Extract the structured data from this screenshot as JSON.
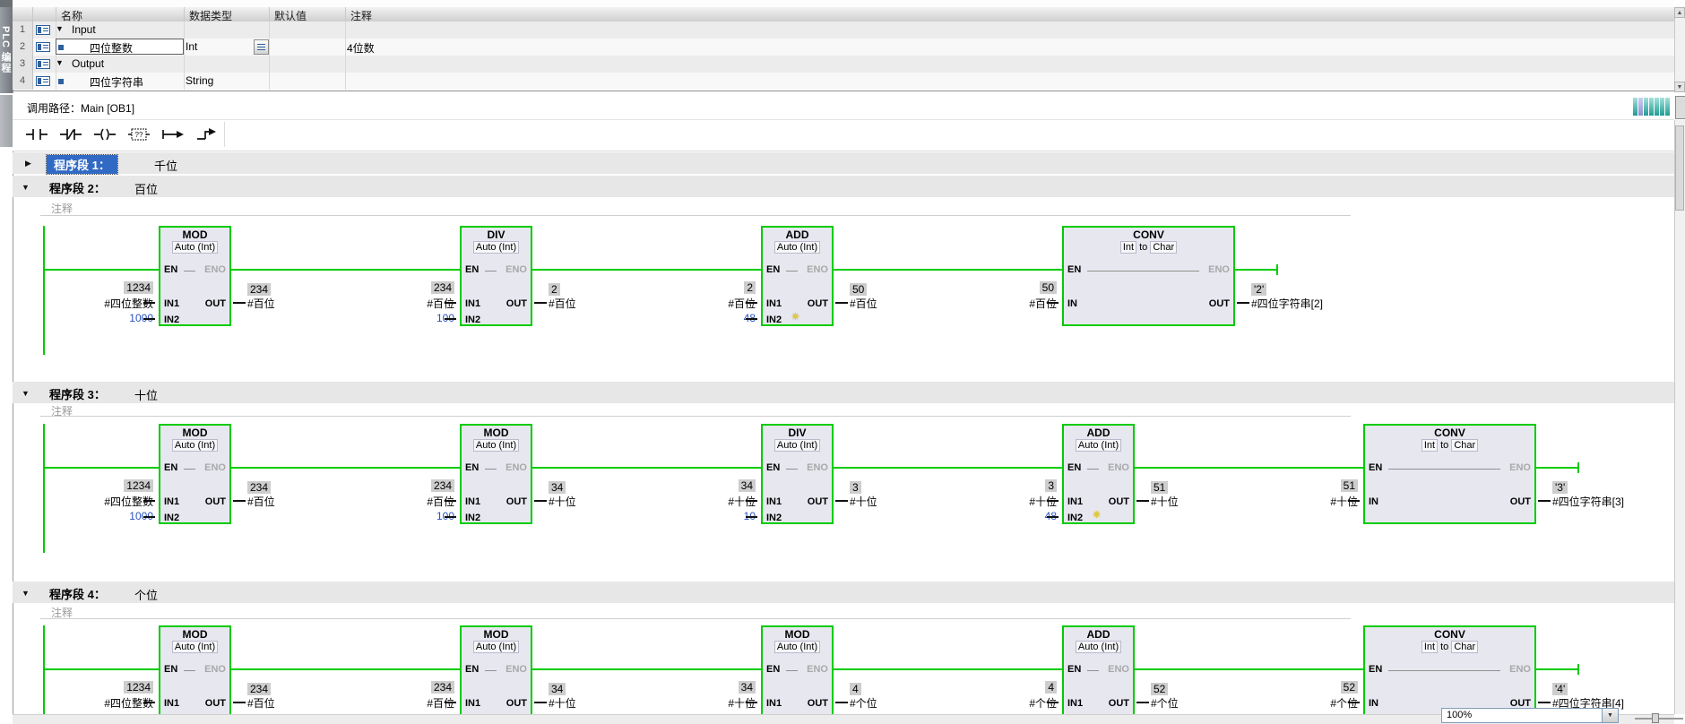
{
  "sidebar": {
    "tab": "PLC 编程"
  },
  "table": {
    "columns": [
      "名称",
      "数据类型",
      "默认值",
      "注释"
    ],
    "rows": [
      {
        "num": "1",
        "kind": "group",
        "name": "Input",
        "type": "",
        "default_value": "",
        "comment": ""
      },
      {
        "num": "2",
        "kind": "member",
        "name": "四位整数",
        "type": "Int",
        "default_value": "",
        "comment": "4位数",
        "selected": true,
        "type_button": true
      },
      {
        "num": "3",
        "kind": "group",
        "name": "Output",
        "type": "",
        "default_value": "",
        "comment": ""
      },
      {
        "num": "4",
        "kind": "member",
        "name": "四位字符串",
        "type": "String",
        "default_value": "",
        "comment": ""
      }
    ]
  },
  "call_path": {
    "text": "调用路径：Main [OB1]",
    "icons": [
      "monitoring-bars-icon",
      "window-icon"
    ]
  },
  "lad_toolbar": {
    "buttons": [
      "normally-open-contact",
      "normally-closed-contact",
      "coil",
      "empty-box",
      "open-branch",
      "close-branch"
    ]
  },
  "pin_labels": {
    "en": "EN",
    "eno": "ENO",
    "in1": "IN1",
    "in2": "IN2",
    "in": "IN",
    "out": "OUT"
  },
  "zoom_control": {
    "value": "100%"
  },
  "networks": [
    {
      "label": "程序段 1：",
      "title": "千位",
      "collapsed": true,
      "selected": true
    },
    {
      "label": "程序段 2：",
      "title": "百位",
      "comment": "注释",
      "blocks": [
        {
          "type": "MOD",
          "subtitle": "Auto (Int)",
          "in1": {
            "value": "1234",
            "operand": "#四位整数"
          },
          "in2": {
            "constant": "1000"
          },
          "out": {
            "value": "234",
            "operand": "#百位"
          }
        },
        {
          "type": "DIV",
          "subtitle": "Auto (Int)",
          "in1": {
            "value": "234",
            "operand": "#百位"
          },
          "in2": {
            "constant": "100"
          },
          "out": {
            "value": "2",
            "operand": "#百位"
          }
        },
        {
          "type": "ADD",
          "subtitle": "Auto (Int)",
          "star": true,
          "in1": {
            "value": "2",
            "operand": "#百位"
          },
          "in2": {
            "constant": "48"
          },
          "out": {
            "value": "50",
            "operand": "#百位"
          }
        },
        {
          "type": "CONV",
          "subtitle": [
            "Int",
            "to",
            "Char"
          ],
          "in": {
            "value": "50",
            "operand": "#百位"
          },
          "out": {
            "value": "'2'",
            "operand": "#四位字符串[2]"
          }
        }
      ]
    },
    {
      "label": "程序段 3：",
      "title": "十位",
      "comment": "注释",
      "blocks": [
        {
          "type": "MOD",
          "subtitle": "Auto (Int)",
          "in1": {
            "value": "1234",
            "operand": "#四位整数"
          },
          "in2": {
            "constant": "1000"
          },
          "out": {
            "value": "234",
            "operand": "#百位"
          }
        },
        {
          "type": "MOD",
          "subtitle": "Auto (Int)",
          "in1": {
            "value": "234",
            "operand": "#百位"
          },
          "in2": {
            "constant": "100"
          },
          "out": {
            "value": "34",
            "operand": "#十位"
          }
        },
        {
          "type": "DIV",
          "subtitle": "Auto (Int)",
          "in1": {
            "value": "34",
            "operand": "#十位"
          },
          "in2": {
            "constant": "10"
          },
          "out": {
            "value": "3",
            "operand": "#十位"
          }
        },
        {
          "type": "ADD",
          "subtitle": "Auto (Int)",
          "star": true,
          "in1": {
            "value": "3",
            "operand": "#十位"
          },
          "in2": {
            "constant": "48"
          },
          "out": {
            "value": "51",
            "operand": "#十位"
          }
        },
        {
          "type": "CONV",
          "subtitle": [
            "Int",
            "to",
            "Char"
          ],
          "in": {
            "value": "51",
            "operand": "#十位"
          },
          "out": {
            "value": "'3'",
            "operand": "#四位字符串[3]"
          }
        }
      ]
    },
    {
      "label": "程序段 4：",
      "title": "个位",
      "comment": "注释",
      "blocks": [
        {
          "type": "MOD",
          "subtitle": "Auto (Int)",
          "in1": {
            "value": "1234",
            "operand": "#四位整数"
          },
          "out": {
            "value": "234",
            "operand": "#百位"
          }
        },
        {
          "type": "MOD",
          "subtitle": "Auto (Int)",
          "in1": {
            "value": "234",
            "operand": "#百位"
          },
          "out": {
            "value": "34",
            "operand": "#十位"
          }
        },
        {
          "type": "MOD",
          "subtitle": "Auto (Int)",
          "in1": {
            "value": "34",
            "operand": "#十位"
          },
          "out": {
            "value": "4",
            "operand": "#个位"
          }
        },
        {
          "type": "ADD",
          "subtitle": "Auto (Int)",
          "in1": {
            "value": "4",
            "operand": "#个位"
          },
          "out": {
            "value": "52",
            "operand": "#个位"
          }
        },
        {
          "type": "CONV",
          "subtitle": [
            "Int",
            "to",
            "Char"
          ],
          "in": {
            "value": "52",
            "operand": "#个位"
          },
          "out": {
            "value": "'4'",
            "operand": "#四位字符串[4]"
          }
        }
      ]
    }
  ]
}
